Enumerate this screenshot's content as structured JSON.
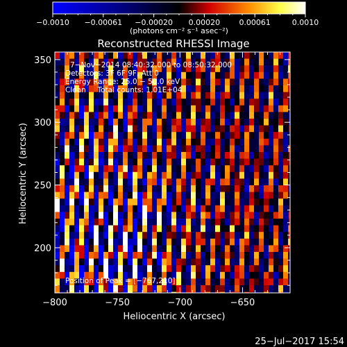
{
  "chart_data": {
    "type": "heatmap",
    "title": "Reconstructed RHESSI Image",
    "xlabel": "Heliocentric X (arcsec)",
    "ylabel": "Heliocentric Y (arcsec)",
    "xlim": [
      -800,
      -612
    ],
    "ylim": [
      164,
      356
    ],
    "x_ticks": [
      -800,
      -750,
      -700,
      -650
    ],
    "y_ticks": [
      200,
      250,
      300,
      350
    ],
    "x_tick_labels": [
      "−800",
      "−750",
      "−700",
      "−650"
    ],
    "y_tick_labels": [
      "200",
      "250",
      "300",
      "350"
    ],
    "colorbar": {
      "range": [
        -0.001,
        0.001
      ],
      "tick_labels": [
        "−0.0010",
        "−0.00061",
        "−0.00020",
        "0.00020",
        "0.00061",
        "0.0010"
      ],
      "units_label": "(photons cm⁻² s⁻¹ asec⁻²)",
      "colormap": "rhessi-blue-black-red-yellow-white"
    },
    "annotations": {
      "time_range": "7−Nov−2014 08:40:32.000 to 08:50:32.000",
      "detectors": "Detectors: 3F 6F 9F, Att 0",
      "energy_range": "Energy Range: 25.0 − 50.0 keV",
      "clean_line": "Clean     Total counts: 1.01E+04",
      "peak_position": "Position of Peak = [−767,210]"
    },
    "footer_date": "25−Jul−2017 15:54",
    "image_pattern": "fringe stripes tilted from upper-left to lower-right; brightest near x≈−767, y≈210"
  }
}
